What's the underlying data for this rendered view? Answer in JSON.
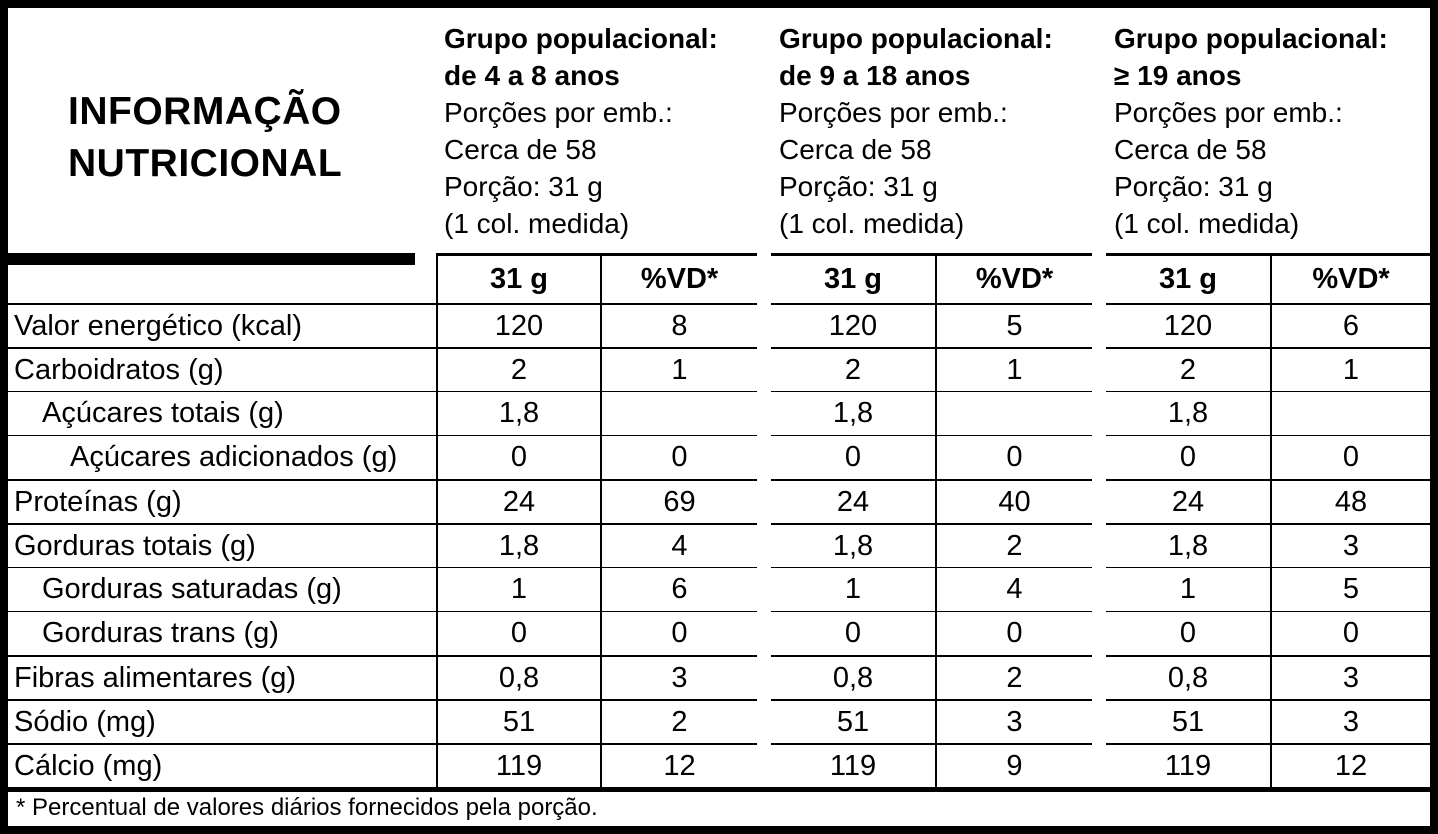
{
  "title": {
    "line1": "INFORMAÇÃO",
    "line2": "NUTRICIONAL"
  },
  "columns": {
    "qty": "31 g",
    "vd": "%VD*"
  },
  "groups": [
    {
      "name_line1": "Grupo populacional:",
      "name_line2": "de 4 a 8 anos",
      "servings_label": "Porções por emb.:",
      "servings_value": "Cerca de 58",
      "portion": "Porção: 31 g",
      "measure": "(1 col. medida)"
    },
    {
      "name_line1": "Grupo populacional:",
      "name_line2": "de 9 a 18 anos",
      "servings_label": "Porções por emb.:",
      "servings_value": "Cerca de 58",
      "portion": "Porção: 31 g",
      "measure": "(1 col. medida)"
    },
    {
      "name_line1": "Grupo populacional:",
      "name_line2": "≥ 19 anos",
      "servings_label": "Porções por emb.:",
      "servings_value": "Cerca de 58",
      "portion": "Porção: 31 g",
      "measure": "(1 col. medida)"
    }
  ],
  "rows": [
    {
      "label": "Valor energético (kcal)",
      "values": [
        "120",
        "8",
        "120",
        "5",
        "120",
        "6"
      ]
    },
    {
      "label": "Carboidratos (g)",
      "values": [
        "2",
        "1",
        "2",
        "1",
        "2",
        "1"
      ]
    },
    {
      "label": "Açúcares totais (g)",
      "values": [
        "1,8",
        "",
        "1,8",
        "",
        "1,8",
        ""
      ]
    },
    {
      "label": "Açúcares adicionados (g)",
      "values": [
        "0",
        "0",
        "0",
        "0",
        "0",
        "0"
      ]
    },
    {
      "label": "Proteínas (g)",
      "values": [
        "24",
        "69",
        "24",
        "40",
        "24",
        "48"
      ]
    },
    {
      "label": "Gorduras totais (g)",
      "values": [
        "1,8",
        "4",
        "1,8",
        "2",
        "1,8",
        "3"
      ]
    },
    {
      "label": "Gorduras saturadas (g)",
      "values": [
        "1",
        "6",
        "1",
        "4",
        "1",
        "5"
      ]
    },
    {
      "label": "Gorduras trans (g)",
      "values": [
        "0",
        "0",
        "0",
        "0",
        "0",
        "0"
      ]
    },
    {
      "label": "Fibras alimentares (g)",
      "values": [
        "0,8",
        "3",
        "0,8",
        "2",
        "0,8",
        "3"
      ]
    },
    {
      "label": "Sódio (mg)",
      "values": [
        "51",
        "2",
        "51",
        "3",
        "51",
        "3"
      ]
    },
    {
      "label": "Cálcio (mg)",
      "values": [
        "119",
        "12",
        "119",
        "9",
        "119",
        "12"
      ]
    }
  ],
  "footnote": "* Percentual de valores diários fornecidos pela porção.",
  "colors": {
    "ink": "#000000",
    "paper": "#ffffff"
  }
}
